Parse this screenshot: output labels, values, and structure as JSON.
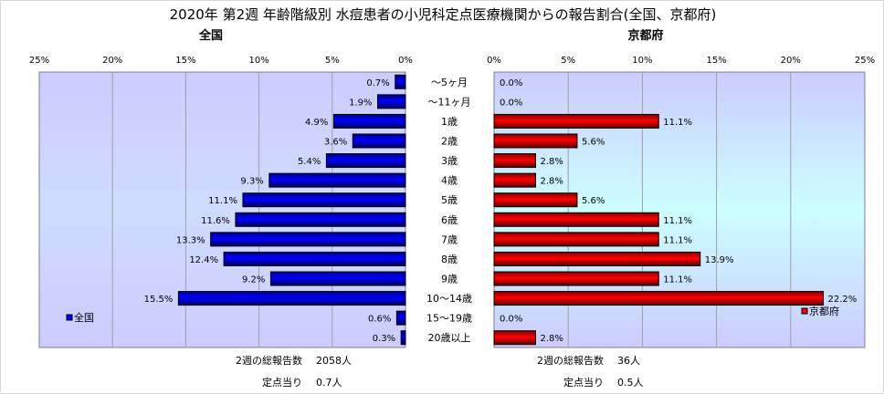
{
  "chart_data": {
    "type": "bar",
    "title": "2020年 第2週 年齢階級別 水痘患者の小児科定点医療機関からの報告割合(全国、京都府)",
    "categories": [
      "～5ヶ月",
      "～11ヶ月",
      "1歳",
      "2歳",
      "3歳",
      "4歳",
      "5歳",
      "6歳",
      "7歳",
      "8歳",
      "9歳",
      "10～14歳",
      "15～19歳",
      "20歳以上"
    ],
    "xlim": [
      0,
      25
    ],
    "ticks": [
      "0%",
      "5%",
      "10%",
      "15%",
      "20%",
      "25%"
    ],
    "grid": true,
    "series": [
      {
        "name": "全国",
        "panel_title": "全国",
        "color": "#0000ff",
        "direction": "left",
        "legend": "left-bottom",
        "values": [
          0.7,
          1.9,
          4.9,
          3.6,
          5.4,
          9.3,
          11.1,
          11.6,
          13.3,
          12.4,
          9.2,
          15.5,
          0.6,
          0.3
        ],
        "total_label": "2週の総報告数",
        "total_value": "2058人",
        "per_site_label": "定点当り",
        "per_site_value": "0.7人"
      },
      {
        "name": "京都府",
        "panel_title": "京都府",
        "color": "#ff0000",
        "direction": "right",
        "legend": "right-bottom",
        "values": [
          0.0,
          0.0,
          11.1,
          5.6,
          2.8,
          2.8,
          5.6,
          11.1,
          11.1,
          13.9,
          11.1,
          22.2,
          0.0,
          2.8
        ],
        "total_label": "2週の総報告数",
        "total_value": "36人",
        "per_site_label": "定点当り",
        "per_site_value": "0.5人"
      }
    ]
  }
}
